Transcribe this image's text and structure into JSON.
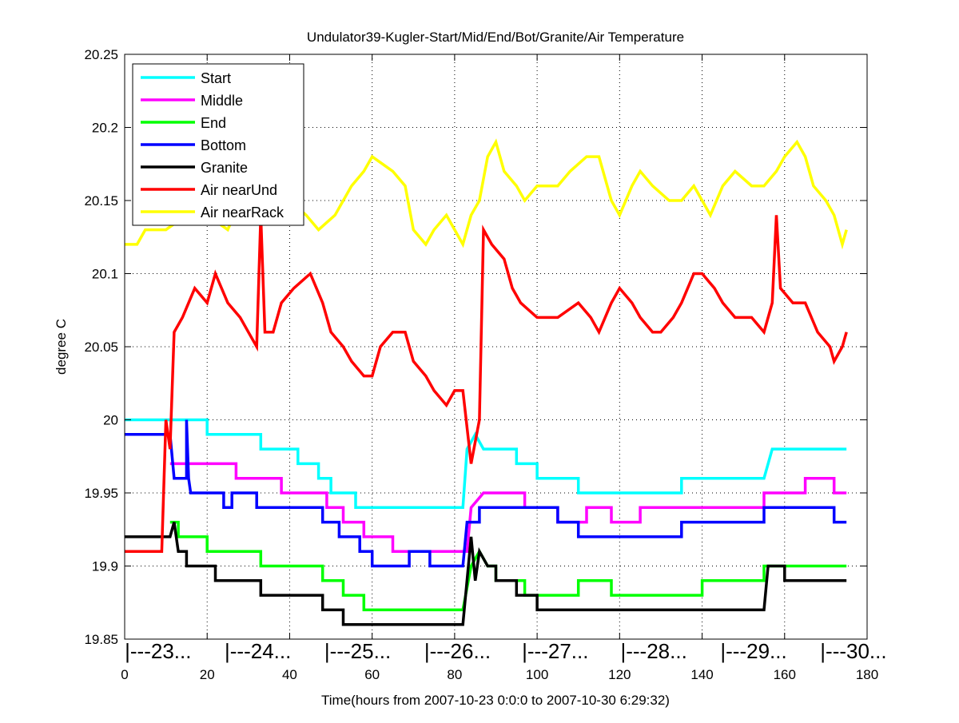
{
  "chart_data": {
    "type": "line",
    "title": "Undulator39-Kugler-Start/Mid/End/Bot/Granite/Air Temperature",
    "xlabel": "Time(hours from 2007-10-23 0:0:0 to 2007-10-30 6:29:32)",
    "ylabel": "degree C",
    "xlim": [
      0,
      180
    ],
    "ylim": [
      19.85,
      20.25
    ],
    "xticks": [
      0,
      20,
      40,
      60,
      80,
      100,
      120,
      140,
      160,
      180
    ],
    "yticks": [
      19.85,
      19.9,
      19.95,
      20,
      20.05,
      20.1,
      20.15,
      20.2,
      20.25
    ],
    "ytick_labels": [
      "19.85",
      "19.9",
      "19.95",
      "20",
      "20.05",
      "20.1",
      "20.15",
      "20.2",
      "20.25"
    ],
    "grid": true,
    "legend_position": "top-left",
    "day_markers": [
      {
        "hour": 0.8,
        "label": "|---23..."
      },
      {
        "hour": 25,
        "label": "|---24..."
      },
      {
        "hour": 49.2,
        "label": "|---25..."
      },
      {
        "hour": 73.4,
        "label": "|---26..."
      },
      {
        "hour": 97.1,
        "label": "|---27..."
      },
      {
        "hour": 121,
        "label": "|---28..."
      },
      {
        "hour": 145.2,
        "label": "|---29..."
      },
      {
        "hour": 169.4,
        "label": "|---30..."
      }
    ],
    "series": [
      {
        "name": "Start",
        "color": "#00ffff",
        "points": [
          [
            0,
            20.0
          ],
          [
            20,
            20.0
          ],
          [
            20,
            19.99
          ],
          [
            33,
            19.99
          ],
          [
            33,
            19.98
          ],
          [
            42,
            19.98
          ],
          [
            42,
            19.97
          ],
          [
            47,
            19.97
          ],
          [
            47,
            19.96
          ],
          [
            50,
            19.96
          ],
          [
            50,
            19.95
          ],
          [
            56,
            19.95
          ],
          [
            56,
            19.94
          ],
          [
            82,
            19.94
          ],
          [
            83,
            19.98
          ],
          [
            85,
            19.99
          ],
          [
            87,
            19.98
          ],
          [
            95,
            19.98
          ],
          [
            95,
            19.97
          ],
          [
            100,
            19.97
          ],
          [
            100,
            19.96
          ],
          [
            110,
            19.96
          ],
          [
            110,
            19.95
          ],
          [
            135,
            19.95
          ],
          [
            135,
            19.96
          ],
          [
            155,
            19.96
          ],
          [
            157,
            19.98
          ],
          [
            160,
            19.98
          ],
          [
            175,
            19.98
          ]
        ]
      },
      {
        "name": "Middle",
        "color": "#ff00ff",
        "points": [
          [
            11,
            19.97
          ],
          [
            27,
            19.97
          ],
          [
            27,
            19.96
          ],
          [
            38,
            19.96
          ],
          [
            38,
            19.95
          ],
          [
            49,
            19.95
          ],
          [
            49,
            19.94
          ],
          [
            53,
            19.94
          ],
          [
            53,
            19.93
          ],
          [
            58,
            19.93
          ],
          [
            58,
            19.92
          ],
          [
            65,
            19.92
          ],
          [
            65,
            19.91
          ],
          [
            83,
            19.91
          ],
          [
            84,
            19.94
          ],
          [
            87,
            19.95
          ],
          [
            97,
            19.95
          ],
          [
            97,
            19.94
          ],
          [
            105,
            19.94
          ],
          [
            105,
            19.93
          ],
          [
            112,
            19.93
          ],
          [
            112,
            19.94
          ],
          [
            118,
            19.94
          ],
          [
            118,
            19.93
          ],
          [
            125,
            19.93
          ],
          [
            125,
            19.94
          ],
          [
            155,
            19.94
          ],
          [
            155,
            19.95
          ],
          [
            165,
            19.95
          ],
          [
            165,
            19.96
          ],
          [
            172,
            19.96
          ],
          [
            172,
            19.95
          ],
          [
            175,
            19.95
          ]
        ]
      },
      {
        "name": "End",
        "color": "#00ff00",
        "points": [
          [
            11,
            19.93
          ],
          [
            13,
            19.93
          ],
          [
            13,
            19.92
          ],
          [
            20,
            19.92
          ],
          [
            20,
            19.91
          ],
          [
            33,
            19.91
          ],
          [
            33,
            19.9
          ],
          [
            48,
            19.9
          ],
          [
            48,
            19.89
          ],
          [
            53,
            19.89
          ],
          [
            53,
            19.88
          ],
          [
            58,
            19.88
          ],
          [
            58,
            19.87
          ],
          [
            82,
            19.87
          ],
          [
            84,
            19.9
          ],
          [
            86,
            19.91
          ],
          [
            88,
            19.9
          ],
          [
            90,
            19.9
          ],
          [
            90,
            19.89
          ],
          [
            97,
            19.89
          ],
          [
            97,
            19.88
          ],
          [
            110,
            19.88
          ],
          [
            110,
            19.89
          ],
          [
            118,
            19.89
          ],
          [
            118,
            19.88
          ],
          [
            140,
            19.88
          ],
          [
            140,
            19.89
          ],
          [
            155,
            19.89
          ],
          [
            155,
            19.9
          ],
          [
            175,
            19.9
          ]
        ]
      },
      {
        "name": "Bottom",
        "color": "#0000ff",
        "points": [
          [
            0,
            19.99
          ],
          [
            11,
            19.99
          ],
          [
            12,
            19.96
          ],
          [
            15,
            19.96
          ],
          [
            15,
            20.0
          ],
          [
            15.5,
            19.96
          ],
          [
            16,
            19.95
          ],
          [
            24,
            19.95
          ],
          [
            24,
            19.94
          ],
          [
            26,
            19.94
          ],
          [
            26,
            19.95
          ],
          [
            32,
            19.95
          ],
          [
            32,
            19.94
          ],
          [
            48,
            19.94
          ],
          [
            48,
            19.93
          ],
          [
            52,
            19.93
          ],
          [
            52,
            19.92
          ],
          [
            57,
            19.92
          ],
          [
            57,
            19.91
          ],
          [
            60,
            19.91
          ],
          [
            60,
            19.9
          ],
          [
            69,
            19.9
          ],
          [
            69,
            19.91
          ],
          [
            74,
            19.91
          ],
          [
            74,
            19.9
          ],
          [
            82,
            19.9
          ],
          [
            83,
            19.93
          ],
          [
            86,
            19.93
          ],
          [
            86,
            19.94
          ],
          [
            105,
            19.94
          ],
          [
            105,
            19.93
          ],
          [
            110,
            19.93
          ],
          [
            110,
            19.92
          ],
          [
            135,
            19.92
          ],
          [
            135,
            19.93
          ],
          [
            155,
            19.93
          ],
          [
            155,
            19.94
          ],
          [
            172,
            19.94
          ],
          [
            172,
            19.93
          ],
          [
            175,
            19.93
          ]
        ]
      },
      {
        "name": "Granite",
        "color": "#000000",
        "points": [
          [
            0,
            19.92
          ],
          [
            11,
            19.92
          ],
          [
            12,
            19.93
          ],
          [
            13,
            19.91
          ],
          [
            15,
            19.91
          ],
          [
            15,
            19.9
          ],
          [
            22,
            19.9
          ],
          [
            22,
            19.89
          ],
          [
            33,
            19.89
          ],
          [
            33,
            19.88
          ],
          [
            48,
            19.88
          ],
          [
            48,
            19.87
          ],
          [
            53,
            19.87
          ],
          [
            53,
            19.86
          ],
          [
            82,
            19.86
          ],
          [
            84,
            19.92
          ],
          [
            85,
            19.89
          ],
          [
            86,
            19.91
          ],
          [
            88,
            19.9
          ],
          [
            90,
            19.9
          ],
          [
            90,
            19.89
          ],
          [
            95,
            19.89
          ],
          [
            95,
            19.88
          ],
          [
            100,
            19.88
          ],
          [
            100,
            19.87
          ],
          [
            155,
            19.87
          ],
          [
            156,
            19.9
          ],
          [
            160,
            19.9
          ],
          [
            160,
            19.89
          ],
          [
            175,
            19.89
          ]
        ]
      },
      {
        "name": "Air nearUnd",
        "color": "#ff0000",
        "points": [
          [
            0,
            19.91
          ],
          [
            9,
            19.91
          ],
          [
            10,
            20.0
          ],
          [
            11,
            19.98
          ],
          [
            12,
            20.06
          ],
          [
            14,
            20.07
          ],
          [
            17,
            20.09
          ],
          [
            20,
            20.08
          ],
          [
            22,
            20.1
          ],
          [
            25,
            20.08
          ],
          [
            28,
            20.07
          ],
          [
            30,
            20.06
          ],
          [
            32,
            20.05
          ],
          [
            33,
            20.14
          ],
          [
            34,
            20.06
          ],
          [
            36,
            20.06
          ],
          [
            38,
            20.08
          ],
          [
            41,
            20.09
          ],
          [
            45,
            20.1
          ],
          [
            48,
            20.08
          ],
          [
            50,
            20.06
          ],
          [
            53,
            20.05
          ],
          [
            55,
            20.04
          ],
          [
            58,
            20.03
          ],
          [
            60,
            20.03
          ],
          [
            62,
            20.05
          ],
          [
            65,
            20.06
          ],
          [
            68,
            20.06
          ],
          [
            70,
            20.04
          ],
          [
            73,
            20.03
          ],
          [
            75,
            20.02
          ],
          [
            78,
            20.01
          ],
          [
            80,
            20.02
          ],
          [
            82,
            20.02
          ],
          [
            84,
            19.97
          ],
          [
            86,
            20.0
          ],
          [
            87,
            20.13
          ],
          [
            89,
            20.12
          ],
          [
            92,
            20.11
          ],
          [
            94,
            20.09
          ],
          [
            96,
            20.08
          ],
          [
            100,
            20.07
          ],
          [
            105,
            20.07
          ],
          [
            110,
            20.08
          ],
          [
            113,
            20.07
          ],
          [
            115,
            20.06
          ],
          [
            118,
            20.08
          ],
          [
            120,
            20.09
          ],
          [
            123,
            20.08
          ],
          [
            125,
            20.07
          ],
          [
            128,
            20.06
          ],
          [
            130,
            20.06
          ],
          [
            133,
            20.07
          ],
          [
            135,
            20.08
          ],
          [
            138,
            20.1
          ],
          [
            140,
            20.1
          ],
          [
            143,
            20.09
          ],
          [
            145,
            20.08
          ],
          [
            148,
            20.07
          ],
          [
            152,
            20.07
          ],
          [
            155,
            20.06
          ],
          [
            157,
            20.08
          ],
          [
            158,
            20.14
          ],
          [
            159,
            20.09
          ],
          [
            162,
            20.08
          ],
          [
            165,
            20.08
          ],
          [
            168,
            20.06
          ],
          [
            171,
            20.05
          ],
          [
            172,
            20.04
          ],
          [
            174,
            20.05
          ],
          [
            175,
            20.06
          ]
        ]
      },
      {
        "name": "Air nearRack",
        "color": "#ffff00",
        "points": [
          [
            0,
            20.12
          ],
          [
            3,
            20.12
          ],
          [
            5,
            20.13
          ],
          [
            10,
            20.13
          ],
          [
            15,
            20.14
          ],
          [
            20,
            20.14
          ],
          [
            25,
            20.13
          ],
          [
            28,
            20.15
          ],
          [
            30,
            20.17
          ],
          [
            33,
            20.15
          ],
          [
            35,
            20.14
          ],
          [
            40,
            20.15
          ],
          [
            44,
            20.14
          ],
          [
            47,
            20.13
          ],
          [
            51,
            20.14
          ],
          [
            55,
            20.16
          ],
          [
            58,
            20.17
          ],
          [
            60,
            20.18
          ],
          [
            65,
            20.17
          ],
          [
            68,
            20.16
          ],
          [
            70,
            20.13
          ],
          [
            73,
            20.12
          ],
          [
            75,
            20.13
          ],
          [
            78,
            20.14
          ],
          [
            80,
            20.13
          ],
          [
            82,
            20.12
          ],
          [
            84,
            20.14
          ],
          [
            86,
            20.15
          ],
          [
            88,
            20.18
          ],
          [
            90,
            20.19
          ],
          [
            92,
            20.17
          ],
          [
            95,
            20.16
          ],
          [
            97,
            20.15
          ],
          [
            100,
            20.16
          ],
          [
            105,
            20.16
          ],
          [
            108,
            20.17
          ],
          [
            112,
            20.18
          ],
          [
            115,
            20.18
          ],
          [
            118,
            20.15
          ],
          [
            120,
            20.14
          ],
          [
            123,
            20.16
          ],
          [
            125,
            20.17
          ],
          [
            128,
            20.16
          ],
          [
            132,
            20.15
          ],
          [
            135,
            20.15
          ],
          [
            138,
            20.16
          ],
          [
            140,
            20.15
          ],
          [
            142,
            20.14
          ],
          [
            145,
            20.16
          ],
          [
            148,
            20.17
          ],
          [
            152,
            20.16
          ],
          [
            155,
            20.16
          ],
          [
            158,
            20.17
          ],
          [
            160,
            20.18
          ],
          [
            163,
            20.19
          ],
          [
            165,
            20.18
          ],
          [
            167,
            20.16
          ],
          [
            170,
            20.15
          ],
          [
            172,
            20.14
          ],
          [
            174,
            20.12
          ],
          [
            175,
            20.13
          ]
        ]
      }
    ]
  }
}
